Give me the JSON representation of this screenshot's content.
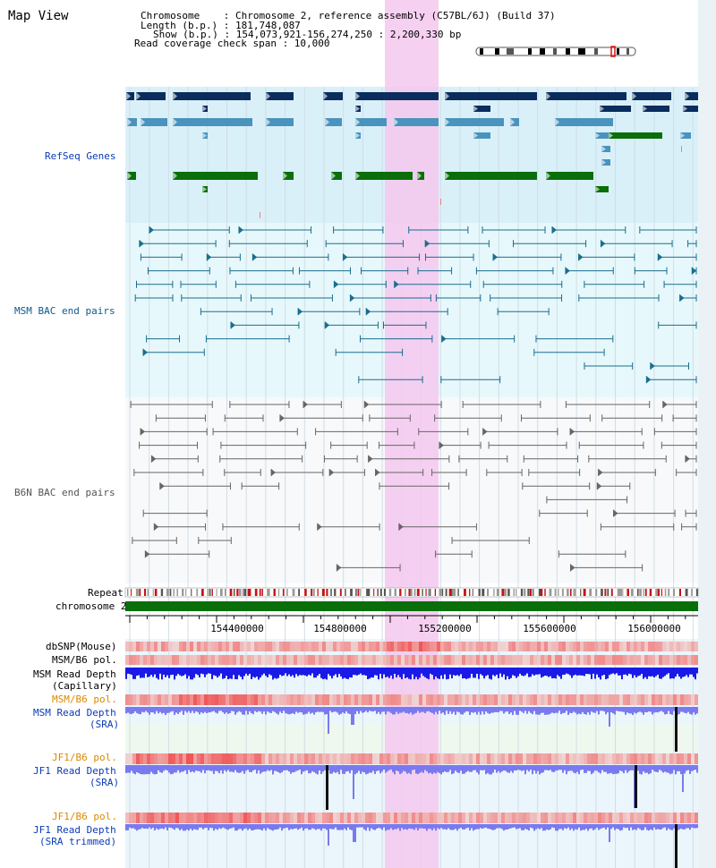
{
  "header": {
    "view_title": "Map View",
    "chromosome_line": "Chromosome    : Chromosome 2, reference assembly (C57BL/6J) (Build 37)",
    "length_line": "Length (b.p.) : 181,748,087",
    "show_line": "Show (b.p.) : 154,073,921-156,274,250 : 2,200,330 bp",
    "coverage_line": "Read coverage check span : 10,000"
  },
  "tracks": {
    "refseq": "RefSeq Genes",
    "msm_bac": "MSM BAC end pairs",
    "b6n_bac": "B6N BAC end pairs",
    "repeat": "Repeat",
    "chromosome": "chromosome 2",
    "dbsnp": "dbSNP(Mouse)",
    "msm_b6_pol": "MSM/B6 pol.",
    "msm_depth_cap_1": "MSM Read Depth",
    "msm_depth_cap_2": "(Capillary)",
    "msm_b6_pol_2": "MSM/B6 pol.",
    "msm_depth_sra_1": "MSM Read Depth",
    "msm_depth_sra_2": "(SRA)",
    "jf1_b6_pol": "JF1/B6 pol.",
    "jf1_depth_sra_1": "JF1 Read Depth",
    "jf1_depth_sra_2": "(SRA)",
    "jf1_b6_pol_2": "JF1/B6 pol.",
    "jf1_depth_trim_1": "JF1 Read Depth",
    "jf1_depth_trim_2": "(SRA trimmed)"
  },
  "axis": {
    "ticks": [
      "154400000",
      "154800000",
      "155200000",
      "155600000",
      "156000000"
    ]
  },
  "colors": {
    "refseq_dark": "#0a2d5e",
    "refseq_mid": "#4a93bd",
    "refseq_green": "#0a6e0a",
    "refseq_bg": "#d9f0f9",
    "msm_bac": "#1a6e8e",
    "msm_bg": "#e6f8fb",
    "b6n_bac": "#666666",
    "chromosome": "#0a6e0a",
    "highlight": "#f5c8ee",
    "depth_blue": "#1a1ae6",
    "depth_soft": "#7a7af0",
    "snp_pink": "#f08080",
    "label_blue": "#0a3cb4",
    "label_orange": "#d98a00",
    "label_teal": "#0a5a8a"
  }
}
